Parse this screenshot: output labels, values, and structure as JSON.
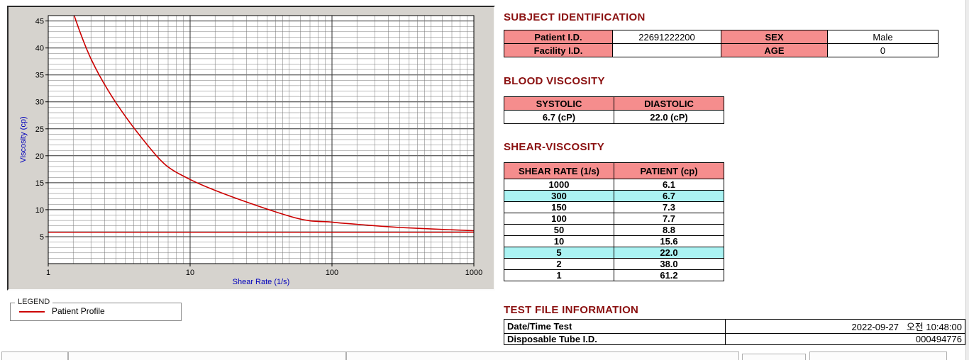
{
  "subject": {
    "title": "SUBJECT IDENTIFICATION",
    "rows": [
      {
        "label1": "Patient I.D.",
        "value1": "22691222200",
        "label2": "SEX",
        "value2": "Male"
      },
      {
        "label1": "Facility I.D.",
        "value1": "",
        "label2": "AGE",
        "value2": "0"
      }
    ]
  },
  "blood": {
    "title": "BLOOD VISCOSITY",
    "headers": [
      "SYSTOLIC",
      "DIASTOLIC"
    ],
    "values": [
      "6.7 (cP)",
      "22.0 (cP)"
    ]
  },
  "shear": {
    "title": "SHEAR-VISCOSITY",
    "headers": [
      "SHEAR RATE (1/s)",
      "PATIENT (cp)"
    ],
    "rows": [
      {
        "rate": "1000",
        "value": "6.1",
        "highlight": false
      },
      {
        "rate": "300",
        "value": "6.7",
        "highlight": true
      },
      {
        "rate": "150",
        "value": "7.3",
        "highlight": false
      },
      {
        "rate": "100",
        "value": "7.7",
        "highlight": false
      },
      {
        "rate": "50",
        "value": "8.8",
        "highlight": false
      },
      {
        "rate": "10",
        "value": "15.6",
        "highlight": false
      },
      {
        "rate": "5",
        "value": "22.0",
        "highlight": true
      },
      {
        "rate": "2",
        "value": "38.0",
        "highlight": false
      },
      {
        "rate": "1",
        "value": "61.2",
        "highlight": false
      }
    ]
  },
  "testfile": {
    "title": "TEST FILE INFORMATION",
    "rows": [
      {
        "label": "Date/Time Test",
        "value": "2022-09-27   오전 10:48:00"
      },
      {
        "label": "Disposable Tube I.D.",
        "value": "000494776"
      }
    ]
  },
  "legend": {
    "box_label": "LEGEND",
    "series_label": "Patient Profile"
  },
  "chart_data": {
    "type": "line",
    "title": "",
    "xlabel": "Shear Rate (1/s)",
    "ylabel": "Viscosity (cp)",
    "x_scale": "log",
    "xlim": [
      1,
      1000
    ],
    "ylim": [
      0,
      46
    ],
    "xticks": [
      1,
      10,
      100,
      1000
    ],
    "yticks": [
      5,
      10,
      15,
      20,
      25,
      30,
      35,
      40,
      45
    ],
    "grid": true,
    "x": [
      1,
      2,
      5,
      10,
      50,
      100,
      150,
      300,
      1000
    ],
    "series": [
      {
        "name": "Patient Profile",
        "values": [
          61.2,
          38.0,
          22.0,
          15.6,
          8.8,
          7.7,
          7.3,
          6.7,
          6.1
        ],
        "color": "#cc0000"
      }
    ],
    "baseline": 5.8,
    "legend_position": "below-left"
  },
  "colors": {
    "accent_pink": "#f58d8d",
    "highlight_cyan": "#abf3f3",
    "title_maroon": "#8b1111",
    "axis_blue": "#0000bb",
    "series_red": "#cc0000",
    "panel_gray": "#d6d3ce"
  }
}
